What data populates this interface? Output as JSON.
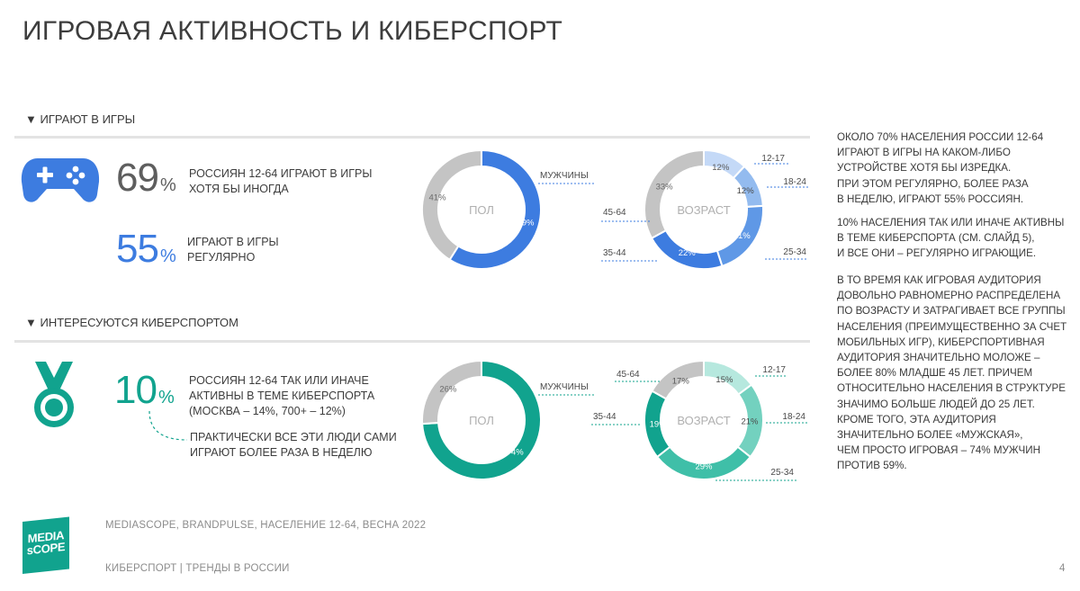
{
  "title": "ИГРОВАЯ АКТИВНОСТЬ И КИБЕРСПОРТ",
  "colors": {
    "gaming_blue": "#3d7ce0",
    "esports_teal": "#11a38e",
    "grey": "#c4c4c4",
    "brand_logo": "#11a38e"
  },
  "gaming": {
    "header": "▼ ИГРАЮТ В ИГРЫ",
    "stat1": {
      "value": "69",
      "unit": "%",
      "lines": [
        "РОССИЯН 12-64 ИГРАЮТ В ИГРЫ",
        "ХОТЯ БЫ ИНОГДА"
      ]
    },
    "stat2": {
      "value": "55",
      "unit": "%",
      "lines": [
        "ИГРАЮТ В ИГРЫ",
        "РЕГУЛЯРНО"
      ]
    }
  },
  "esports": {
    "header": "▼ ИНТЕРЕСУЮТСЯ КИБЕРСПОРТОМ",
    "stat1": {
      "value": "10",
      "unit": "%",
      "lines": [
        "РОССИЯН 12-64 ТАК ИЛИ ИНАЧЕ",
        "АКТИВНЫ В ТЕМЕ КИБЕРСПОРТА",
        "(МОСКВА – 14%, 700+ – 12%)"
      ]
    },
    "note_lines": [
      "ПРАКТИЧЕСКИ ВСЕ ЭТИ ЛЮДИ САМИ",
      "ИГРАЮТ БОЛЕЕ РАЗА В НЕДЕЛЮ"
    ]
  },
  "chart_data": [
    {
      "type": "pie",
      "title": "",
      "center_label": "ПОЛ",
      "categories": [
        "МУЖЧИНЫ",
        ""
      ],
      "values": [
        59,
        41
      ],
      "labels": [
        "59%",
        "41%"
      ],
      "callouts": [
        "МУЖЧИНЫ"
      ]
    },
    {
      "type": "pie",
      "title": "",
      "center_label": "ВОЗРАСТ",
      "categories": [
        "12-17",
        "18-24",
        "25-34",
        "35-44",
        "45-64"
      ],
      "values": [
        12,
        12,
        21,
        22,
        33
      ],
      "labels": [
        "12%",
        "12%",
        "21%",
        "22%",
        "33%"
      ],
      "callouts": [
        "12-17",
        "18-24",
        "25-34",
        "35-44",
        "45-64"
      ]
    },
    {
      "type": "pie",
      "title": "",
      "center_label": "ПОЛ",
      "categories": [
        "МУЖЧИНЫ",
        ""
      ],
      "values": [
        74,
        26
      ],
      "labels": [
        "74%",
        "26%"
      ],
      "callouts": [
        "МУЖЧИНЫ"
      ]
    },
    {
      "type": "pie",
      "title": "",
      "center_label": "ВОЗРАСТ",
      "categories": [
        "12-17",
        "18-24",
        "25-34",
        "35-44",
        "45-64"
      ],
      "values": [
        15,
        21,
        29,
        19,
        17
      ],
      "labels": [
        "15%",
        "21%",
        "29%",
        "19%",
        "17%"
      ],
      "callouts": [
        "12-17",
        "18-24",
        "25-34",
        "35-44",
        "45-64"
      ]
    }
  ],
  "right_text": {
    "p1": [
      "ОКОЛО 70% НАСЕЛЕНИЯ РОССИИ 12-64",
      "ИГРАЮТ В ИГРЫ НА КАКОМ-ЛИБО",
      "УСТРОЙСТВЕ ХОТЯ БЫ ИЗРЕДКА.",
      "ПРИ ЭТОМ РЕГУЛЯРНО, БОЛЕЕ РАЗА",
      "В НЕДЕЛЮ, ИГРАЮТ 55% РОССИЯН."
    ],
    "p2": [
      "10% НАСЕЛЕНИЯ ТАК ИЛИ ИНАЧЕ АКТИВНЫ",
      "В ТЕМЕ КИБЕРСПОРТА (СМ. СЛАЙД 5),",
      "И ВСЕ ОНИ – РЕГУЛЯРНО ИГРАЮЩИЕ."
    ],
    "p3": [
      "В ТО ВРЕМЯ КАК ИГРОВАЯ АУДИТОРИЯ",
      "ДОВОЛЬНО РАВНОМЕРНО РАСПРЕДЕЛЕНА",
      "ПО ВОЗРАСТУ И ЗАТРАГИВАЕТ ВСЕ ГРУППЫ",
      "НАСЕЛЕНИЯ (ПРЕИМУЩЕСТВЕННО ЗА СЧЕТ",
      "МОБИЛЬНЫХ ИГР), КИБЕРСПОРТИВНАЯ",
      "АУДИТОРИЯ ЗНАЧИТЕЛЬНО МОЛОЖЕ –",
      "БОЛЕЕ 80% МЛАДШЕ 45 ЛЕТ. ПРИЧЕМ",
      "ОТНОСИТЕЛЬНО НАСЕЛЕНИЯ В СТРУКТУРЕ",
      "ЗНАЧИМО БОЛЬШЕ ЛЮДЕЙ ДО 25 ЛЕТ.",
      "КРОМЕ ТОГО, ЭТА АУДИТОРИЯ",
      "ЗНАЧИТЕЛЬНО БОЛЕЕ «МУЖСКАЯ»,",
      "ЧЕМ ПРОСТО ИГРОВАЯ – 74% МУЖЧИН",
      "ПРОТИВ 59%."
    ]
  },
  "logo": {
    "line1": "MEDIA",
    "line2": "sCOPE"
  },
  "footer": {
    "source": "MEDIASCOPE, BRANDPULSE, НАСЕЛЕНИЕ 12-64, ВЕСНА 2022",
    "section": "КИБЕРСПОРТ | ТРЕНДЫ В РОССИИ",
    "page": "4"
  }
}
